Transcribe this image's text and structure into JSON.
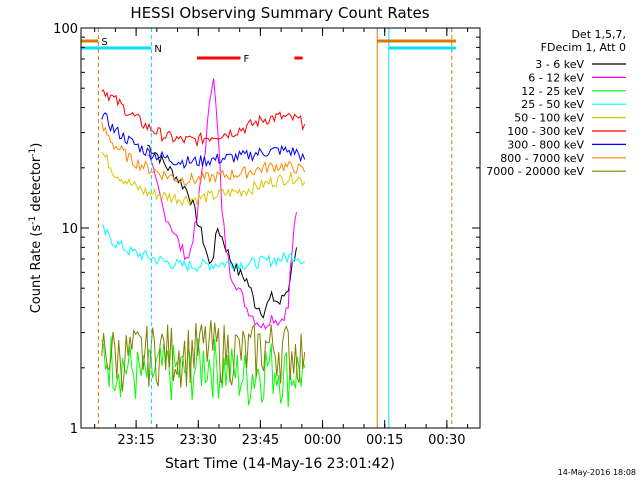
{
  "chart_data": {
    "type": "line",
    "title": "HESSI Observing Summary Count Rates",
    "xlabel": "Start Time (14-May-16 23:01:42)",
    "ylabel": "Count Rate (s⁻¹ detector⁻¹)",
    "yscale": "log",
    "ylim": [
      1,
      100
    ],
    "xlim_minutes_after_start": [
      0,
      96.3
    ],
    "x_ticks": [
      "23:15",
      "23:30",
      "23:45",
      "00:00",
      "00:15",
      "00:30"
    ],
    "y_ticks": [
      "1",
      "10",
      "100"
    ],
    "legend_header": [
      "Det 1,5,7,",
      "FDecim 1, Att 0"
    ],
    "legend_placement": "right",
    "footer_date": "14-May-2016 18:08",
    "markers": [
      {
        "label": "S",
        "color": "#d97a00",
        "x": 0.0,
        "to": 4.2
      },
      {
        "label": "N",
        "color": "#00e0ff",
        "x": 0.0,
        "to": 17.0
      },
      {
        "label": "F",
        "color": "#ff0000",
        "x": 28.0,
        "to": 38.5
      },
      {
        "label": "",
        "color": "#ff0000",
        "x": 51.5,
        "to": 53.5
      }
    ],
    "series": [
      {
        "name": "3 - 6 keV",
        "color": "#000000",
        "x": [
          16,
          18,
          20,
          22,
          24,
          26,
          27,
          28,
          29,
          30,
          31,
          32,
          33,
          34,
          36,
          38,
          40,
          42,
          44,
          46,
          48,
          50,
          52
        ],
        "values": [
          26,
          24,
          21,
          19,
          17,
          15,
          13,
          11,
          9.5,
          8,
          6.5,
          7.5,
          10,
          9,
          7,
          6,
          5.5,
          4.2,
          3.8,
          4.5,
          4.2,
          5,
          8
        ]
      },
      {
        "name": "6 - 12 keV",
        "color": "#ff00ff",
        "x": [
          16,
          18,
          20,
          22,
          24,
          26,
          28,
          30,
          31,
          32,
          33,
          34,
          35,
          36,
          38,
          40,
          42,
          44,
          46,
          48,
          50,
          52
        ],
        "values": [
          24,
          17,
          12,
          10,
          8,
          7,
          11,
          25,
          40,
          60,
          30,
          12,
          8,
          6,
          5,
          4,
          3.5,
          3.2,
          3.6,
          3.4,
          4,
          12
        ]
      },
      {
        "name": "12 - 25 keV",
        "color": "#00ff00",
        "x": [
          5,
          10,
          15,
          20,
          25,
          30,
          35,
          40,
          45,
          50,
          54
        ],
        "values": [
          2.4,
          2.1,
          1.8,
          2,
          1.9,
          2.2,
          2,
          1.8,
          2.1,
          1.9,
          2
        ]
      },
      {
        "name": "25 - 50 keV",
        "color": "#00ffff",
        "x": [
          5,
          8,
          12,
          16,
          20,
          24,
          28,
          32,
          36,
          40,
          44,
          48,
          52,
          54
        ],
        "values": [
          9.8,
          8.5,
          7.6,
          7.2,
          6.8,
          6.5,
          6.5,
          6.6,
          6.7,
          6.6,
          6.8,
          7,
          7.3,
          6.8
        ]
      },
      {
        "name": "50 - 100 keV",
        "color": "#d8c800",
        "x": [
          5,
          8,
          12,
          16,
          20,
          24,
          28,
          32,
          36,
          40,
          44,
          48,
          52,
          54
        ],
        "values": [
          24,
          19,
          16.5,
          15,
          14.5,
          14,
          14,
          14.5,
          15,
          15.5,
          16.5,
          17.5,
          18,
          17
        ]
      },
      {
        "name": "100 - 300 keV",
        "color": "#ff0000",
        "x": [
          5,
          8,
          12,
          16,
          20,
          24,
          28,
          32,
          36,
          40,
          44,
          48,
          52,
          54
        ],
        "values": [
          50,
          44,
          37,
          32,
          29,
          27.5,
          27.5,
          29,
          30,
          32,
          35,
          36,
          35,
          33
        ]
      },
      {
        "name": "300 - 800 keV",
        "color": "#0000ff",
        "x": [
          5,
          8,
          12,
          16,
          20,
          24,
          28,
          32,
          36,
          40,
          44,
          48,
          52,
          54
        ],
        "values": [
          37,
          31,
          27,
          24,
          22.5,
          21.5,
          21.5,
          22,
          22.5,
          23,
          24,
          24.5,
          24,
          22
        ]
      },
      {
        "name": "800 - 7000 keV",
        "color": "#ff8800",
        "x": [
          5,
          8,
          12,
          16,
          20,
          24,
          28,
          32,
          36,
          40,
          44,
          48,
          52,
          54
        ],
        "values": [
          32,
          26,
          22,
          20,
          18.5,
          17.5,
          17.5,
          18,
          18.5,
          19,
          20,
          20.5,
          20,
          19
        ]
      },
      {
        "name": "7000 - 20000 keV",
        "color": "#808000",
        "x": [
          5,
          10,
          15,
          20,
          25,
          30,
          35,
          40,
          45,
          50,
          54
        ],
        "values": [
          2.5,
          2.3,
          2.4,
          2.5,
          2.4,
          2.6,
          2.5,
          2.4,
          2.6,
          2.5,
          2.4
        ]
      }
    ]
  }
}
